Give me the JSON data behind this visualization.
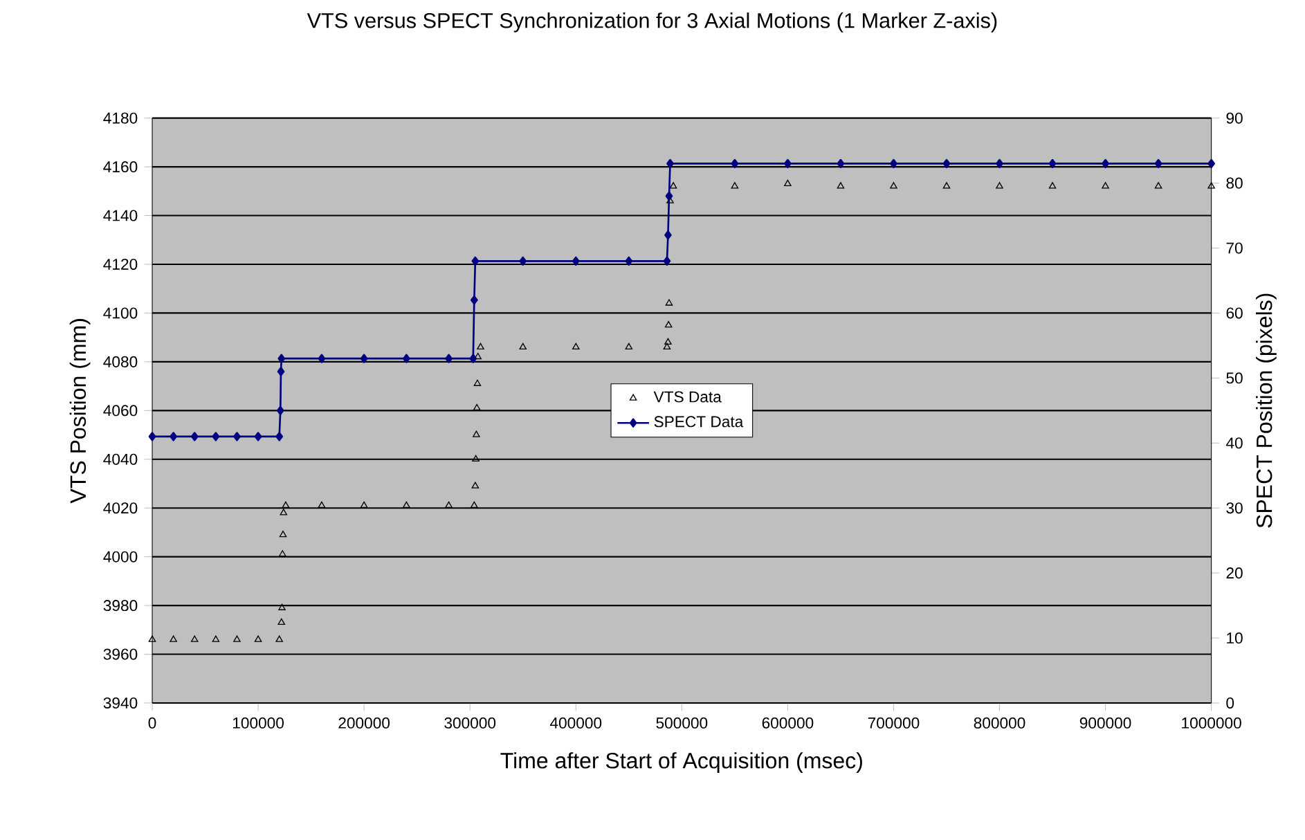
{
  "chart_data": {
    "type": "scatter",
    "title": "VTS versus SPECT Synchronization for 3 Axial Motions (1 Marker Z-axis)",
    "xlabel": "Time after Start of Acquisition (msec)",
    "ylabel": "VTS Position (mm)",
    "y2label": "SPECT Position (pixels)",
    "xlim": [
      0,
      1000000
    ],
    "xticks": [
      0,
      100000,
      200000,
      300000,
      400000,
      500000,
      600000,
      700000,
      800000,
      900000,
      1000000
    ],
    "ylim": [
      3940,
      4180
    ],
    "yticks": [
      3940,
      3960,
      3980,
      4000,
      4020,
      4040,
      4060,
      4080,
      4100,
      4120,
      4140,
      4160,
      4180
    ],
    "y2lim": [
      0,
      90
    ],
    "y2ticks": [
      0,
      10,
      20,
      30,
      40,
      50,
      60,
      70,
      80,
      90
    ],
    "grid": "y",
    "legend": "center",
    "series": [
      {
        "name": "VTS Data",
        "marker": "triangle",
        "color": "#000000",
        "x": [
          0,
          20000,
          40000,
          60000,
          80000,
          100000,
          120000,
          122000,
          122500,
          123000,
          123500,
          124000,
          126000,
          160000,
          200000,
          240000,
          280000,
          304000,
          305000,
          305500,
          306000,
          306500,
          307000,
          307500,
          310000,
          350000,
          400000,
          450000,
          486000,
          487000,
          487500,
          488000,
          489000,
          492000,
          550000,
          600000,
          650000,
          700000,
          750000,
          800000,
          850000,
          900000,
          950000,
          1000000
        ],
        "values": [
          3966,
          3966,
          3966,
          3966,
          3966,
          3966,
          3966,
          3973,
          3979,
          4001,
          4009,
          4018,
          4021,
          4021,
          4021,
          4021,
          4021,
          4021,
          4029,
          4040,
          4050,
          4061,
          4071,
          4082,
          4086,
          4086,
          4086,
          4086,
          4086,
          4088,
          4095,
          4104,
          4146,
          4152,
          4152,
          4153,
          4152,
          4152,
          4152,
          4152,
          4152,
          4152,
          4152,
          4152
        ]
      },
      {
        "name": "SPECT Data",
        "type": "line",
        "axis": "y2",
        "marker": "diamond",
        "line_style": "solid",
        "color": "#000080",
        "x": [
          0,
          20000,
          40000,
          60000,
          80000,
          100000,
          120000,
          121000,
          121500,
          122000,
          160000,
          200000,
          240000,
          280000,
          303000,
          304000,
          305000,
          350000,
          400000,
          450000,
          486000,
          487000,
          488000,
          489000,
          550000,
          600000,
          650000,
          700000,
          750000,
          800000,
          850000,
          900000,
          950000,
          1000000
        ],
        "values": [
          41,
          41,
          41,
          41,
          41,
          41,
          41,
          45,
          51,
          53,
          53,
          53,
          53,
          53,
          53,
          62,
          68,
          68,
          68,
          68,
          68,
          72,
          78,
          83,
          83,
          83,
          83,
          83,
          83,
          83,
          83,
          83,
          83,
          83
        ]
      }
    ]
  }
}
